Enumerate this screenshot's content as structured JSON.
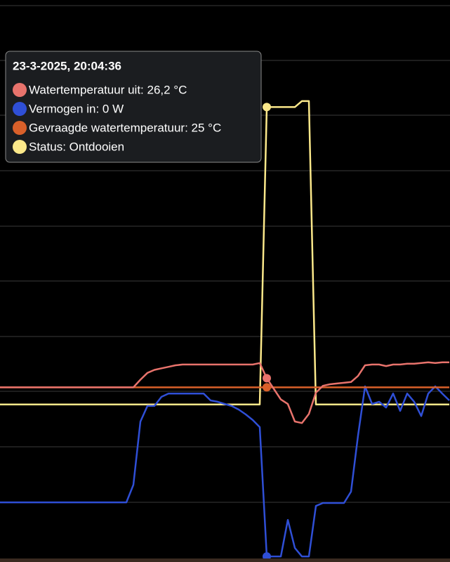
{
  "chart_data": {
    "type": "line",
    "series": [
      {
        "color": "#fbe88a",
        "ylim": [
          -0.53,
          1.36
        ],
        "values": [
          0,
          0,
          0,
          0,
          0,
          0,
          0,
          0,
          0,
          0,
          0,
          0,
          0,
          0,
          0,
          0,
          0,
          0,
          0,
          0,
          0,
          0,
          0,
          0,
          0,
          0,
          0,
          0,
          0,
          0,
          0,
          0,
          0,
          0,
          0,
          0,
          0,
          0,
          1,
          1,
          1,
          1,
          1,
          1.02,
          1.02,
          0,
          0,
          0,
          0,
          0,
          0,
          0,
          0,
          0,
          0,
          0,
          0,
          0,
          0,
          0,
          0,
          0,
          0,
          0,
          0
        ]
      },
      {
        "color": "#2f4fd6",
        "ylim": [
          -25,
          2500
        ],
        "values": [
          243,
          243,
          243,
          243,
          243,
          243,
          243,
          243,
          243,
          243,
          243,
          243,
          243,
          243,
          243,
          243,
          243,
          243,
          243,
          322,
          606,
          676,
          676,
          717,
          732,
          732,
          732,
          732,
          732,
          732,
          701,
          695,
          685,
          676,
          660,
          638,
          613,
          581,
          0,
          0,
          0,
          164,
          38,
          0,
          0,
          227,
          240,
          240,
          240,
          240,
          291,
          543,
          764,
          685,
          695,
          669,
          732,
          654,
          732,
          695,
          631,
          732,
          764,
          732,
          701
        ]
      },
      {
        "color": "#d9602a",
        "ylim": [
          2,
          76
        ],
        "values": [
          25,
          25,
          25,
          25,
          25,
          25,
          25,
          25,
          25,
          25,
          25,
          25,
          25,
          25,
          25,
          25,
          25,
          25,
          25,
          25,
          25,
          25,
          25,
          25,
          25,
          25,
          25,
          25,
          25,
          25,
          25,
          25,
          25,
          25,
          25,
          25,
          25,
          25,
          25,
          25,
          25,
          25,
          25,
          25,
          25,
          25,
          25,
          25,
          25,
          25,
          25,
          25,
          25,
          25,
          25,
          25,
          25,
          25,
          25,
          25,
          25,
          25,
          25,
          25,
          25
        ]
      },
      {
        "color": "#e8736c",
        "ylim": [
          2,
          76
        ],
        "values": [
          25,
          25,
          25,
          25,
          25,
          25,
          25,
          25,
          25,
          25,
          25,
          25,
          25,
          25,
          25,
          25,
          25,
          25,
          25,
          25,
          26,
          26.9,
          27.3,
          27.5,
          27.7,
          27.9,
          28,
          28,
          28,
          28,
          28,
          28,
          28,
          28,
          28,
          28,
          28,
          28.2,
          26.2,
          24.8,
          23.4,
          22.8,
          20.5,
          20.3,
          21.5,
          24.3,
          25.2,
          25.4,
          25.5,
          25.6,
          25.7,
          26.5,
          27.9,
          28,
          28,
          27.8,
          28,
          28,
          28.1,
          28.1,
          28.2,
          28.3,
          28.2,
          28.3,
          28.3
        ]
      }
    ]
  },
  "tooltip": {
    "title": "23-3-2025, 20:04:36",
    "items": [
      "Watertemperatuur uit: 26,2 °C",
      "Vermogen in: 0 W",
      "Gevraagde watertemperatuur: 25 °C",
      "Status: Ontdooien"
    ]
  }
}
